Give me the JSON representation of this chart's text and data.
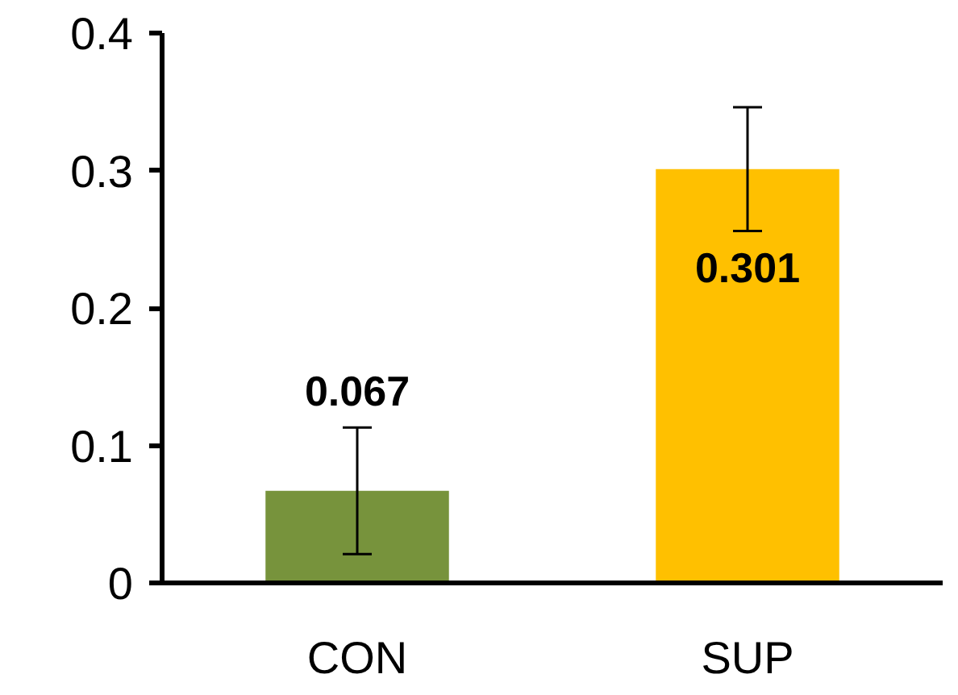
{
  "chart_data": {
    "type": "bar",
    "categories": [
      "CON",
      "SUP"
    ],
    "values": [
      0.067,
      0.301
    ],
    "colors": [
      "#77933c",
      "#ffc000"
    ],
    "errors": [
      0.046,
      0.045
    ],
    "ylim": [
      0,
      0.4
    ],
    "yticks": [
      0,
      0.1,
      0.2,
      0.3,
      0.4
    ],
    "grid": false,
    "data_labels": true
  }
}
